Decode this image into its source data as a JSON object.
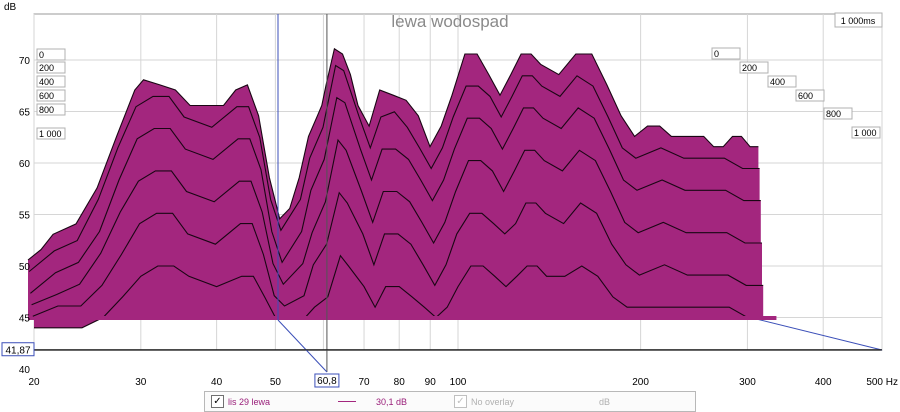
{
  "chart_data": {
    "type": "waterfall",
    "title": "lewa wodospad",
    "ylabel": "dB",
    "xlabel": "Hz",
    "x_scale": "log",
    "xlim": [
      20,
      500
    ],
    "ylim": [
      40,
      73
    ],
    "x_ticks": [
      "20",
      "30",
      "40",
      "50",
      "60,8",
      "70",
      "80",
      "90",
      "100",
      "200",
      "300",
      "400",
      "500 Hz"
    ],
    "y_ticks": [
      "70",
      "65",
      "60",
      "55",
      "50",
      "45",
      "41,87",
      "40"
    ],
    "y_cursor_label": "41,87",
    "x_cursor_label": "60,8",
    "time_axis_label": "1 000ms",
    "time_slices_left": [
      "0",
      "200",
      "400",
      "600",
      "800",
      "1 000"
    ],
    "time_slices_right": [
      "0",
      "200",
      "400",
      "600",
      "800",
      "1 000"
    ],
    "series_color": "#a3267e",
    "slices": [
      {
        "t": 0,
        "points": [
          [
            20,
            50
          ],
          [
            21,
            51
          ],
          [
            22,
            52.5
          ],
          [
            24,
            53.5
          ],
          [
            26,
            57
          ],
          [
            28,
            62
          ],
          [
            30,
            66.5
          ],
          [
            31,
            67.5
          ],
          [
            33,
            67
          ],
          [
            35,
            66.5
          ],
          [
            37,
            65
          ],
          [
            40,
            65
          ],
          [
            42,
            65
          ],
          [
            44,
            66.5
          ],
          [
            46,
            67
          ],
          [
            48,
            64
          ],
          [
            50,
            58
          ],
          [
            52,
            54
          ],
          [
            54,
            55
          ],
          [
            56,
            58
          ],
          [
            58,
            62
          ],
          [
            60,
            64
          ],
          [
            61,
            65
          ],
          [
            62,
            67
          ],
          [
            64,
            70.5
          ],
          [
            66,
            70
          ],
          [
            68,
            68
          ],
          [
            70,
            65
          ],
          [
            73,
            63
          ],
          [
            76,
            66.5
          ],
          [
            80,
            66
          ],
          [
            84,
            65.5
          ],
          [
            88,
            64
          ],
          [
            92,
            61
          ],
          [
            96,
            63
          ],
          [
            100,
            66
          ],
          [
            105,
            70
          ],
          [
            110,
            70
          ],
          [
            115,
            68
          ],
          [
            120,
            66
          ],
          [
            125,
            68
          ],
          [
            130,
            70
          ],
          [
            135,
            70
          ],
          [
            140,
            69
          ],
          [
            150,
            68
          ],
          [
            160,
            70
          ],
          [
            170,
            70
          ],
          [
            180,
            67
          ],
          [
            190,
            64
          ],
          [
            200,
            62
          ],
          [
            210,
            63
          ],
          [
            220,
            63
          ],
          [
            230,
            62
          ],
          [
            240,
            62
          ],
          [
            250,
            62
          ],
          [
            260,
            62
          ],
          [
            270,
            61
          ],
          [
            280,
            61
          ],
          [
            290,
            62
          ],
          [
            300,
            62
          ],
          [
            310,
            61
          ],
          [
            320,
            61
          ]
        ]
      },
      {
        "t": 200,
        "points": [
          [
            20,
            49
          ],
          [
            22,
            51
          ],
          [
            24,
            52
          ],
          [
            26,
            56
          ],
          [
            28,
            61
          ],
          [
            30,
            65
          ],
          [
            32,
            66
          ],
          [
            34,
            66
          ],
          [
            36,
            64
          ],
          [
            40,
            63
          ],
          [
            44,
            65
          ],
          [
            46,
            65
          ],
          [
            48,
            62
          ],
          [
            50,
            56
          ],
          [
            52,
            53
          ],
          [
            56,
            56
          ],
          [
            58,
            60
          ],
          [
            61,
            63
          ],
          [
            64,
            69
          ],
          [
            66,
            68.5
          ],
          [
            70,
            64
          ],
          [
            73,
            61
          ],
          [
            76,
            64
          ],
          [
            80,
            64.5
          ],
          [
            84,
            63
          ],
          [
            88,
            61
          ],
          [
            92,
            59
          ],
          [
            96,
            61
          ],
          [
            100,
            64
          ],
          [
            105,
            67
          ],
          [
            110,
            67
          ],
          [
            115,
            66
          ],
          [
            120,
            64
          ],
          [
            125,
            66
          ],
          [
            130,
            68
          ],
          [
            135,
            68
          ],
          [
            140,
            67
          ],
          [
            150,
            66
          ],
          [
            160,
            68
          ],
          [
            170,
            67
          ],
          [
            180,
            64
          ],
          [
            190,
            61
          ],
          [
            200,
            60
          ],
          [
            220,
            61
          ],
          [
            240,
            60
          ],
          [
            260,
            60
          ],
          [
            280,
            60
          ],
          [
            300,
            59
          ],
          [
            320,
            59
          ]
        ]
      },
      {
        "t": 400,
        "points": [
          [
            20,
            47
          ],
          [
            22,
            49
          ],
          [
            24,
            50
          ],
          [
            26,
            53
          ],
          [
            28,
            58
          ],
          [
            30,
            62
          ],
          [
            32,
            63
          ],
          [
            34,
            63
          ],
          [
            36,
            61
          ],
          [
            40,
            60
          ],
          [
            44,
            62
          ],
          [
            46,
            62
          ],
          [
            48,
            59
          ],
          [
            50,
            53
          ],
          [
            52,
            50
          ],
          [
            56,
            53
          ],
          [
            58,
            57
          ],
          [
            61,
            60
          ],
          [
            64,
            66
          ],
          [
            66,
            65.5
          ],
          [
            70,
            61
          ],
          [
            73,
            58
          ],
          [
            76,
            61
          ],
          [
            80,
            61
          ],
          [
            84,
            60
          ],
          [
            88,
            58
          ],
          [
            92,
            56
          ],
          [
            96,
            58
          ],
          [
            100,
            61
          ],
          [
            105,
            64
          ],
          [
            110,
            64
          ],
          [
            115,
            63
          ],
          [
            120,
            61
          ],
          [
            125,
            63
          ],
          [
            130,
            65
          ],
          [
            135,
            65
          ],
          [
            140,
            64
          ],
          [
            150,
            63
          ],
          [
            160,
            65
          ],
          [
            170,
            64
          ],
          [
            180,
            61
          ],
          [
            190,
            58
          ],
          [
            200,
            57
          ],
          [
            220,
            58
          ],
          [
            240,
            57
          ],
          [
            260,
            57
          ],
          [
            280,
            57
          ],
          [
            300,
            56
          ],
          [
            320,
            56
          ]
        ]
      },
      {
        "t": 600,
        "points": [
          [
            20,
            46
          ],
          [
            22,
            47
          ],
          [
            24,
            48
          ],
          [
            26,
            51
          ],
          [
            28,
            55
          ],
          [
            30,
            58
          ],
          [
            32,
            59
          ],
          [
            34,
            59
          ],
          [
            36,
            57
          ],
          [
            40,
            56
          ],
          [
            44,
            58
          ],
          [
            46,
            58
          ],
          [
            48,
            55
          ],
          [
            50,
            50
          ],
          [
            52,
            48
          ],
          [
            56,
            50
          ],
          [
            58,
            53
          ],
          [
            61,
            56
          ],
          [
            64,
            62
          ],
          [
            66,
            61
          ],
          [
            70,
            57
          ],
          [
            73,
            54
          ],
          [
            76,
            57
          ],
          [
            80,
            57
          ],
          [
            84,
            56
          ],
          [
            88,
            54
          ],
          [
            92,
            52
          ],
          [
            96,
            54
          ],
          [
            100,
            57
          ],
          [
            105,
            60
          ],
          [
            110,
            60
          ],
          [
            115,
            59
          ],
          [
            120,
            57
          ],
          [
            125,
            59
          ],
          [
            130,
            61
          ],
          [
            135,
            61
          ],
          [
            140,
            60
          ],
          [
            150,
            59
          ],
          [
            160,
            61
          ],
          [
            170,
            60
          ],
          [
            180,
            57
          ],
          [
            190,
            54
          ],
          [
            200,
            53
          ],
          [
            220,
            54
          ],
          [
            240,
            53
          ],
          [
            260,
            53
          ],
          [
            280,
            53
          ],
          [
            300,
            52
          ],
          [
            320,
            52
          ]
        ]
      },
      {
        "t": 800,
        "points": [
          [
            20,
            45
          ],
          [
            22,
            46
          ],
          [
            24,
            46
          ],
          [
            26,
            48
          ],
          [
            28,
            51
          ],
          [
            30,
            54
          ],
          [
            32,
            55
          ],
          [
            34,
            55
          ],
          [
            36,
            53
          ],
          [
            40,
            52
          ],
          [
            44,
            54
          ],
          [
            46,
            54
          ],
          [
            48,
            51
          ],
          [
            50,
            47
          ],
          [
            52,
            46
          ],
          [
            56,
            47
          ],
          [
            58,
            50
          ],
          [
            61,
            52
          ],
          [
            64,
            57
          ],
          [
            66,
            56
          ],
          [
            70,
            53
          ],
          [
            73,
            50
          ],
          [
            76,
            53
          ],
          [
            80,
            53
          ],
          [
            84,
            52
          ],
          [
            88,
            50
          ],
          [
            92,
            48
          ],
          [
            96,
            50
          ],
          [
            100,
            53
          ],
          [
            105,
            55
          ],
          [
            110,
            55
          ],
          [
            115,
            54
          ],
          [
            120,
            53
          ],
          [
            125,
            54
          ],
          [
            130,
            56
          ],
          [
            135,
            56
          ],
          [
            140,
            55
          ],
          [
            150,
            54
          ],
          [
            160,
            56
          ],
          [
            170,
            55
          ],
          [
            180,
            52
          ],
          [
            190,
            50
          ],
          [
            200,
            49
          ],
          [
            220,
            50
          ],
          [
            240,
            49
          ],
          [
            260,
            49
          ],
          [
            280,
            49
          ],
          [
            300,
            48
          ],
          [
            320,
            48
          ]
        ]
      },
      {
        "t": 1000,
        "points": [
          [
            20,
            44
          ],
          [
            24,
            44
          ],
          [
            26,
            45
          ],
          [
            28,
            47
          ],
          [
            30,
            49
          ],
          [
            32,
            50
          ],
          [
            34,
            50
          ],
          [
            36,
            49
          ],
          [
            40,
            48
          ],
          [
            44,
            49
          ],
          [
            46,
            49
          ],
          [
            48,
            47
          ],
          [
            50,
            45
          ],
          [
            56,
            45
          ],
          [
            58,
            46
          ],
          [
            61,
            47
          ],
          [
            64,
            51
          ],
          [
            66,
            50
          ],
          [
            70,
            48
          ],
          [
            73,
            46
          ],
          [
            76,
            48
          ],
          [
            80,
            48
          ],
          [
            84,
            47
          ],
          [
            88,
            46
          ],
          [
            92,
            45
          ],
          [
            96,
            46
          ],
          [
            100,
            48
          ],
          [
            105,
            50
          ],
          [
            110,
            50
          ],
          [
            115,
            49
          ],
          [
            120,
            48
          ],
          [
            125,
            49
          ],
          [
            130,
            50
          ],
          [
            135,
            50
          ],
          [
            140,
            49
          ],
          [
            150,
            49
          ],
          [
            160,
            50
          ],
          [
            170,
            49
          ],
          [
            180,
            47
          ],
          [
            190,
            46
          ],
          [
            200,
            46
          ],
          [
            220,
            46
          ],
          [
            240,
            46
          ],
          [
            260,
            46
          ],
          [
            280,
            46
          ],
          [
            300,
            45
          ],
          [
            320,
            45
          ]
        ]
      }
    ],
    "legend": {
      "series_name": "lis 29 lewa",
      "series_value": "30,1 dB",
      "overlay_label": "No overlay",
      "overlay_unit": "dB"
    }
  }
}
